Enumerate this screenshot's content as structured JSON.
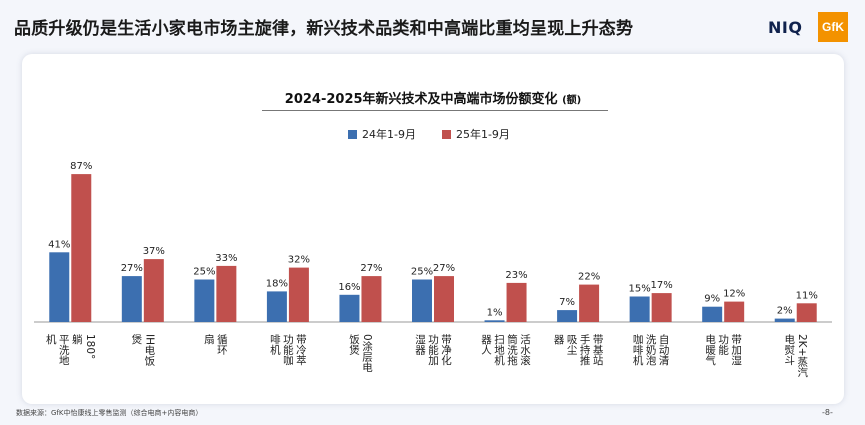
{
  "slide": {
    "headline": "品质升级仍是生活小家电市场主旋律，新兴技术品类和中高端比重均呈现上升态势",
    "brand_niq": "NIQ",
    "brand_gfk": "GfK",
    "source": "数据来源：GfK中怡康线上零售监测（综合电商+内容电商）",
    "page_number": "-8-"
  },
  "colors": {
    "series_2024": "#3c6fb0",
    "series_2025": "#c0504d",
    "brand_orange": "#f39200"
  },
  "chart_data": {
    "type": "bar",
    "title": "2024-2025年新兴技术及中高端市场份额变化",
    "title_unit": "(额)",
    "categories": [
      "180°躺平洗地机",
      "IH电饭煲",
      "循环扇",
      "带冷萃功能咖啡机",
      "0涂层电饭煲",
      "带净化功能加湿器",
      "活水滚筒洗拖扫地机器人",
      "带基站手持推吸尘器",
      "自动清洗奶泡咖啡机",
      "带加湿功能电暖气",
      "2K+蒸汽电熨斗"
    ],
    "category_columns": [
      [
        "180°",
        "躺",
        "平洗地",
        "机"
      ],
      [
        "IH电饭",
        "煲"
      ],
      [
        "循环",
        "扇"
      ],
      [
        "带冷萃",
        "功能咖",
        "啡机"
      ],
      [
        "0涂层电",
        "饭煲"
      ],
      [
        "带净化",
        "功能加",
        "湿器"
      ],
      [
        "活水滚",
        "筒洗拖",
        "扫地机",
        "器人"
      ],
      [
        "带基站",
        "手持推",
        "吸尘",
        "器"
      ],
      [
        "自动清",
        "洗奶泡",
        "咖啡机"
      ],
      [
        "带加湿",
        "功能",
        "电暖气"
      ],
      [
        "2K+蒸汽",
        "电熨斗"
      ]
    ],
    "series": [
      {
        "name": "24年1-9月",
        "values": [
          41,
          27,
          25,
          18,
          16,
          25,
          1,
          7,
          15,
          9,
          2
        ]
      },
      {
        "name": "25年1-9月",
        "values": [
          87,
          37,
          33,
          32,
          27,
          27,
          23,
          22,
          17,
          12,
          11
        ]
      }
    ],
    "value_suffix": "%",
    "ylim": [
      0,
      100
    ],
    "legend_position": "top-center",
    "grid": false
  }
}
